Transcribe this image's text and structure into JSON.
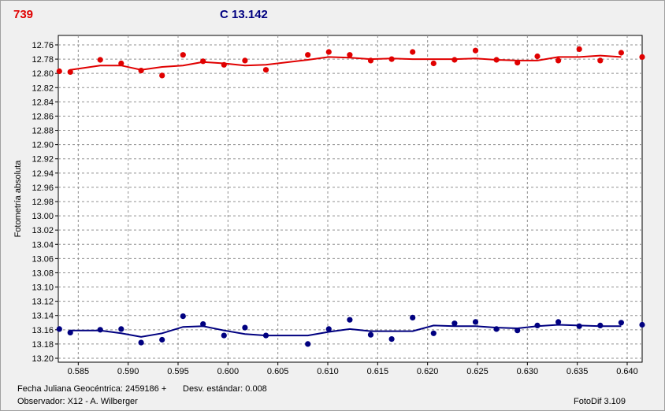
{
  "header": {
    "variable_label": "739",
    "comparison_label": "C 13.142",
    "variable_color": "#e00000",
    "comparison_color": "#000080"
  },
  "footer": {
    "jd_label": "Fecha Juliana Geocéntrica: 2459186 +",
    "stddev_label": "Desv. estándar: 0.008",
    "observer_label": "Observador: X12 - A. Wilberger",
    "software_label": "FotoDif 3.109"
  },
  "chart_data": {
    "type": "scatter",
    "ylabel": "Fotometría absoluta",
    "xlabel": "",
    "xlim": [
      0.583,
      0.6415
    ],
    "ylim": [
      13.2,
      12.75
    ],
    "y_inverted": true,
    "grid": true,
    "x_ticks": [
      "0.585",
      "0.590",
      "0.595",
      "0.600",
      "0.605",
      "0.610",
      "0.615",
      "0.620",
      "0.625",
      "0.630",
      "0.635",
      "0.640"
    ],
    "y_ticks": [
      "12.76",
      "12.78",
      "12.80",
      "12.82",
      "12.84",
      "12.86",
      "12.88",
      "12.90",
      "12.92",
      "12.94",
      "12.96",
      "12.98",
      "13.00",
      "13.02",
      "13.04",
      "13.06",
      "13.08",
      "13.10",
      "13.12",
      "13.14",
      "13.16",
      "13.18",
      "13.20"
    ],
    "series": [
      {
        "color": "#e00000",
        "points": [
          [
            0.5831,
            12.797
          ],
          [
            0.5842,
            12.798
          ],
          [
            0.5872,
            12.781
          ],
          [
            0.5893,
            12.786
          ],
          [
            0.5913,
            12.796
          ],
          [
            0.5934,
            12.803
          ],
          [
            0.5955,
            12.774
          ],
          [
            0.5975,
            12.783
          ],
          [
            0.5996,
            12.788
          ],
          [
            0.6017,
            12.782
          ],
          [
            0.6038,
            12.795
          ],
          [
            0.608,
            12.774
          ],
          [
            0.6101,
            12.77
          ],
          [
            0.6122,
            12.774
          ],
          [
            0.6143,
            12.782
          ],
          [
            0.6164,
            12.78
          ],
          [
            0.6185,
            12.77
          ],
          [
            0.6206,
            12.786
          ],
          [
            0.6227,
            12.781
          ],
          [
            0.6248,
            12.768
          ],
          [
            0.6269,
            12.781
          ],
          [
            0.629,
            12.785
          ],
          [
            0.631,
            12.776
          ],
          [
            0.6331,
            12.782
          ],
          [
            0.6352,
            12.766
          ],
          [
            0.6373,
            12.782
          ],
          [
            0.6394,
            12.771
          ],
          [
            0.6415,
            12.777
          ]
        ],
        "trend": [
          [
            0.5842,
            12.795
          ],
          [
            0.5872,
            12.789
          ],
          [
            0.5893,
            12.789
          ],
          [
            0.5913,
            12.795
          ],
          [
            0.5934,
            12.791
          ],
          [
            0.5955,
            12.789
          ],
          [
            0.5975,
            12.784
          ],
          [
            0.5996,
            12.786
          ],
          [
            0.6017,
            12.789
          ],
          [
            0.6038,
            12.788
          ],
          [
            0.608,
            12.781
          ],
          [
            0.6101,
            12.777
          ],
          [
            0.6122,
            12.778
          ],
          [
            0.6143,
            12.78
          ],
          [
            0.6164,
            12.779
          ],
          [
            0.6185,
            12.78
          ],
          [
            0.6206,
            12.78
          ],
          [
            0.6227,
            12.78
          ],
          [
            0.6248,
            12.779
          ],
          [
            0.6269,
            12.781
          ],
          [
            0.629,
            12.782
          ],
          [
            0.631,
            12.782
          ],
          [
            0.6331,
            12.777
          ],
          [
            0.6352,
            12.777
          ],
          [
            0.6373,
            12.775
          ],
          [
            0.6394,
            12.777
          ]
        ]
      },
      {
        "color": "#000080",
        "points": [
          [
            0.5831,
            13.159
          ],
          [
            0.5842,
            13.164
          ],
          [
            0.5872,
            13.16
          ],
          [
            0.5893,
            13.159
          ],
          [
            0.5913,
            13.178
          ],
          [
            0.5934,
            13.174
          ],
          [
            0.5955,
            13.141
          ],
          [
            0.5975,
            13.152
          ],
          [
            0.5996,
            13.168
          ],
          [
            0.6017,
            13.157
          ],
          [
            0.6038,
            13.168
          ],
          [
            0.608,
            13.18
          ],
          [
            0.6101,
            13.159
          ],
          [
            0.6122,
            13.146
          ],
          [
            0.6143,
            13.167
          ],
          [
            0.6164,
            13.173
          ],
          [
            0.6185,
            13.143
          ],
          [
            0.6206,
            13.165
          ],
          [
            0.6227,
            13.151
          ],
          [
            0.6248,
            13.149
          ],
          [
            0.6269,
            13.159
          ],
          [
            0.629,
            13.161
          ],
          [
            0.631,
            13.154
          ],
          [
            0.6331,
            13.149
          ],
          [
            0.6352,
            13.155
          ],
          [
            0.6373,
            13.154
          ],
          [
            0.6394,
            13.15
          ],
          [
            0.6415,
            13.153
          ]
        ],
        "trend": [
          [
            0.5842,
            13.161
          ],
          [
            0.5872,
            13.161
          ],
          [
            0.5893,
            13.165
          ],
          [
            0.5913,
            13.17
          ],
          [
            0.5934,
            13.165
          ],
          [
            0.5955,
            13.156
          ],
          [
            0.5975,
            13.155
          ],
          [
            0.5996,
            13.161
          ],
          [
            0.6017,
            13.166
          ],
          [
            0.6038,
            13.168
          ],
          [
            0.608,
            13.168
          ],
          [
            0.6101,
            13.163
          ],
          [
            0.6122,
            13.159
          ],
          [
            0.6143,
            13.162
          ],
          [
            0.6164,
            13.162
          ],
          [
            0.6185,
            13.162
          ],
          [
            0.6206,
            13.154
          ],
          [
            0.6227,
            13.155
          ],
          [
            0.6248,
            13.155
          ],
          [
            0.6269,
            13.157
          ],
          [
            0.629,
            13.158
          ],
          [
            0.631,
            13.155
          ],
          [
            0.6331,
            13.153
          ],
          [
            0.6352,
            13.154
          ],
          [
            0.6373,
            13.155
          ],
          [
            0.6394,
            13.155
          ]
        ]
      }
    ]
  }
}
